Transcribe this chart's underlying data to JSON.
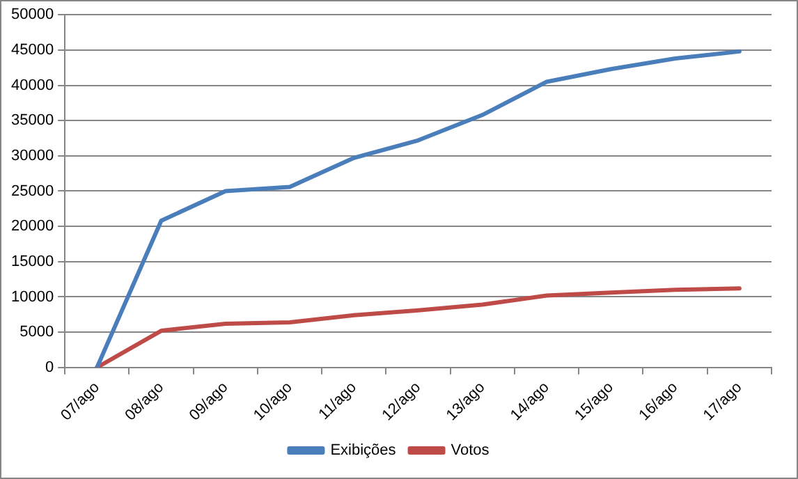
{
  "chart_data": {
    "type": "line",
    "categories": [
      "07/ago",
      "08/ago",
      "09/ago",
      "10/ago",
      "11/ago",
      "12/ago",
      "13/ago",
      "14/ago",
      "15/ago",
      "16/ago",
      "17/ago"
    ],
    "series": [
      {
        "name": "Exibições",
        "color": "#4a7ebb",
        "values": [
          0,
          20800,
          25000,
          25600,
          29700,
          32200,
          35800,
          40500,
          42300,
          43800,
          44800
        ]
      },
      {
        "name": "Votos",
        "color": "#be4b48",
        "values": [
          0,
          5200,
          6200,
          6400,
          7400,
          8100,
          8900,
          10200,
          10600,
          11000,
          11200
        ]
      }
    ],
    "ylim": [
      0,
      50000
    ],
    "yticks": [
      0,
      5000,
      10000,
      15000,
      20000,
      25000,
      30000,
      35000,
      40000,
      45000,
      50000
    ],
    "grid": "y",
    "legend": "bottom",
    "marker": "none",
    "line_style": "solid"
  }
}
